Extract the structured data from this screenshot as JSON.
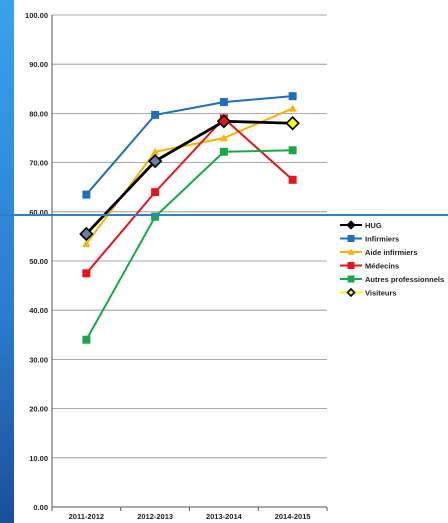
{
  "chart_data": {
    "type": "line",
    "categories": [
      "2011-2012",
      "2012-2013",
      "2013-2014",
      "2014-2015"
    ],
    "ylim": [
      0,
      100
    ],
    "yticks": [
      "0.00",
      "10.00",
      "20.00",
      "30.00",
      "40.00",
      "50.00",
      "60.00",
      "70.00",
      "80.00",
      "90.00",
      "100.00"
    ],
    "grid": true,
    "legend_position": "right",
    "series": [
      {
        "name": "HUG",
        "values": [
          55.5,
          70.3,
          78.4,
          78.0
        ],
        "color": "#000000",
        "marker": "diamond"
      },
      {
        "name": "Infirmiers",
        "values": [
          63.5,
          79.7,
          82.3,
          83.5
        ],
        "color": "#1f6fbd",
        "marker": "square"
      },
      {
        "name": "Aide infirmiers",
        "values": [
          53.5,
          72.2,
          75.0,
          81.0
        ],
        "color": "#f5b400",
        "marker": "triangle"
      },
      {
        "name": "Médecins",
        "values": [
          47.5,
          64.0,
          79.0,
          66.5
        ],
        "color": "#e8141b",
        "marker": "square"
      },
      {
        "name": "Autres professionnels",
        "values": [
          34.0,
          59.0,
          72.2,
          72.5
        ],
        "color": "#1aa64a",
        "marker": "square"
      },
      {
        "name": "Visiteurs",
        "values": [
          null,
          null,
          null,
          78.0
        ],
        "color": "#ffff00",
        "marker": "diamond"
      }
    ]
  }
}
